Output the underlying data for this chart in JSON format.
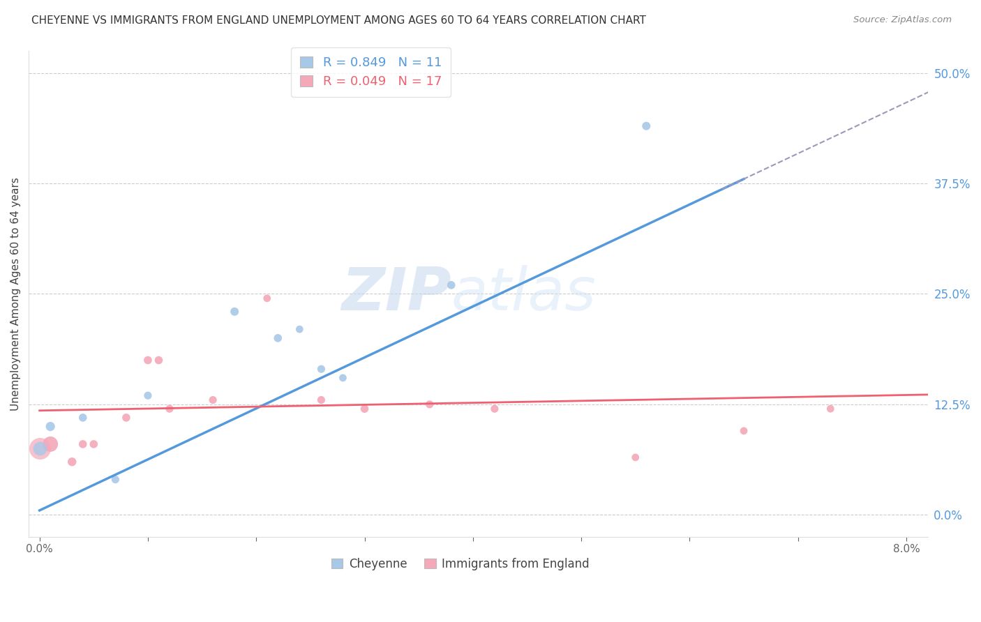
{
  "title": "CHEYENNE VS IMMIGRANTS FROM ENGLAND UNEMPLOYMENT AMONG AGES 60 TO 64 YEARS CORRELATION CHART",
  "source": "Source: ZipAtlas.com",
  "ylabel": "Unemployment Among Ages 60 to 64 years",
  "right_yticklabels": [
    "0.0%",
    "12.5%",
    "25.0%",
    "37.5%",
    "50.0%"
  ],
  "right_yticks": [
    0.0,
    0.125,
    0.25,
    0.375,
    0.5
  ],
  "xlim": [
    -0.001,
    0.082
  ],
  "ylim": [
    -0.025,
    0.525
  ],
  "cheyenne_color": "#a8c8e8",
  "england_color": "#f4a8b8",
  "cheyenne_line_color": "#5599dd",
  "england_line_color": "#f06070",
  "dashed_line_color": "#9999bb",
  "legend_cheyenne_label": "Cheyenne",
  "legend_england_label": "Immigrants from England",
  "R_cheyenne": "0.849",
  "N_cheyenne": "11",
  "R_england": "0.049",
  "N_england": "17",
  "watermark_zip": "ZIP",
  "watermark_atlas": "atlas",
  "cheyenne_x": [
    0.001,
    0.004,
    0.007,
    0.01,
    0.018,
    0.022,
    0.024,
    0.026,
    0.028,
    0.038,
    0.056
  ],
  "cheyenne_y": [
    0.1,
    0.11,
    0.04,
    0.135,
    0.23,
    0.2,
    0.21,
    0.165,
    0.155,
    0.26,
    0.44
  ],
  "cheyenne_sizes": [
    90,
    70,
    65,
    65,
    75,
    70,
    60,
    65,
    60,
    70,
    75
  ],
  "england_x": [
    0.001,
    0.003,
    0.004,
    0.005,
    0.008,
    0.01,
    0.011,
    0.012,
    0.016,
    0.021,
    0.026,
    0.03,
    0.036,
    0.042,
    0.055,
    0.065,
    0.073
  ],
  "england_y": [
    0.08,
    0.06,
    0.08,
    0.08,
    0.11,
    0.175,
    0.175,
    0.12,
    0.13,
    0.245,
    0.13,
    0.12,
    0.125,
    0.12,
    0.065,
    0.095,
    0.12
  ],
  "england_sizes": [
    250,
    80,
    70,
    70,
    70,
    70,
    70,
    65,
    65,
    60,
    65,
    70,
    65,
    65,
    60,
    60,
    60
  ],
  "xtick_positions": [
    0.0,
    0.01,
    0.02,
    0.03,
    0.04,
    0.05,
    0.06,
    0.07,
    0.08
  ],
  "xtick_labels": [
    "0.0%",
    "",
    "",
    "",
    "",
    "",
    "",
    "",
    "8.0%"
  ],
  "cheyenne_line_x": [
    0.0,
    0.065
  ],
  "dashed_line_x": [
    0.063,
    0.09
  ],
  "england_line_x": [
    0.0,
    0.082
  ]
}
